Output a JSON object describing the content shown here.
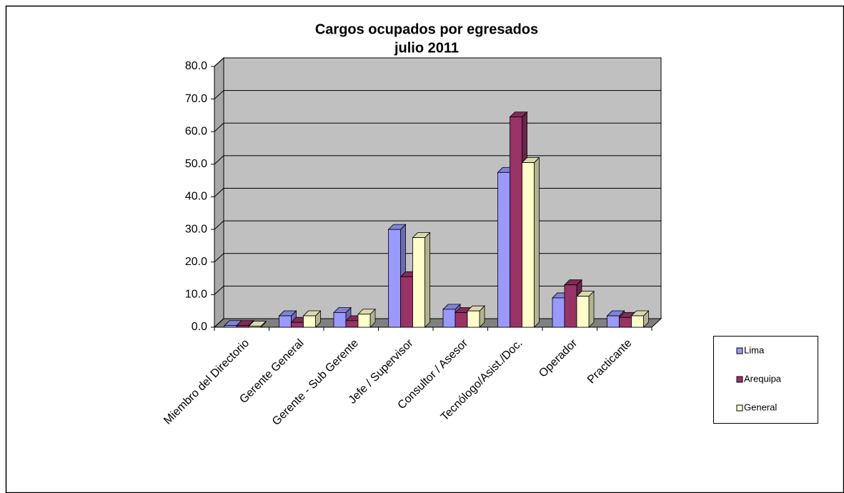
{
  "chart_data": {
    "type": "bar3d",
    "title": "Cargos ocupados por egresados",
    "subtitle": "julio 2011",
    "categories": [
      "Miembro del Directorio",
      "Gerente General",
      "Gerente - Sub Gerente",
      "Jefe / Supervisor",
      "Consultor / Asesor",
      "Tecnólogo/Asist./Doc.",
      "Operador",
      "Practicante"
    ],
    "series": [
      {
        "name": "Lima",
        "color": "#9999ff",
        "values": [
          0.5,
          3.5,
          4.5,
          30,
          5.5,
          47.5,
          9,
          3.5
        ]
      },
      {
        "name": "Arequipa",
        "color": "#993366",
        "values": [
          0.5,
          1.5,
          2,
          15.5,
          4.5,
          64.5,
          13,
          3
        ]
      },
      {
        "name": "General",
        "color": "#ffffcc",
        "values": [
          0.3,
          3.5,
          4,
          27.5,
          5,
          50.5,
          9.5,
          3.5
        ]
      }
    ],
    "ylim": [
      0,
      80
    ],
    "yticks": [
      {
        "value": 0,
        "label": "0.0"
      },
      {
        "value": 10,
        "label": "10.0"
      },
      {
        "value": 20,
        "label": "20.0"
      },
      {
        "value": 30,
        "label": "30.0"
      },
      {
        "value": 40,
        "label": "40.0"
      },
      {
        "value": 50,
        "label": "50.0"
      },
      {
        "value": 60,
        "label": "60.0"
      },
      {
        "value": 70,
        "label": "70.0"
      },
      {
        "value": 80,
        "label": "80.0"
      }
    ],
    "grid": true
  }
}
